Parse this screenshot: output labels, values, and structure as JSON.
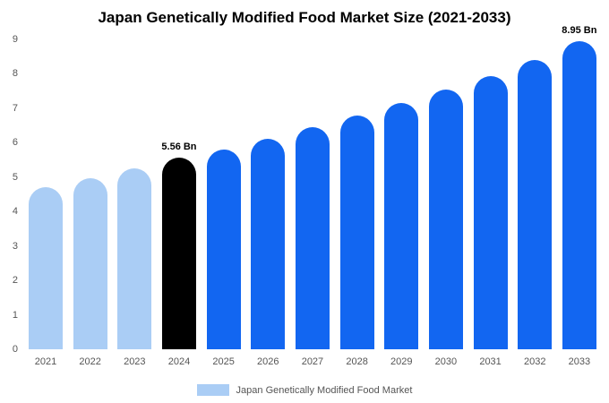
{
  "chart_data": {
    "type": "bar",
    "title": "Japan Genetically Modified Food Market Size (2021-2033)",
    "categories": [
      "2021",
      "2022",
      "2023",
      "2024",
      "2025",
      "2026",
      "2027",
      "2028",
      "2029",
      "2030",
      "2031",
      "2032",
      "2033"
    ],
    "values": [
      4.7,
      4.97,
      5.26,
      5.56,
      5.8,
      6.11,
      6.44,
      6.79,
      7.16,
      7.55,
      7.94,
      8.4,
      8.95
    ],
    "bar_colors": [
      "#aacdf5",
      "#aacdf5",
      "#aacdf5",
      "#000000",
      "#1266f1",
      "#1266f1",
      "#1266f1",
      "#1266f1",
      "#1266f1",
      "#1266f1",
      "#1266f1",
      "#1266f1",
      "#1266f1"
    ],
    "annotations": [
      {
        "index": 3,
        "label": "5.56 Bn"
      },
      {
        "index": 12,
        "label": "8.95 Bn"
      }
    ],
    "xlabel": "",
    "ylabel": "",
    "ylim": [
      0,
      9
    ],
    "yticks": [
      0,
      1,
      2,
      3,
      4,
      5,
      6,
      7,
      8,
      9
    ],
    "grid": false,
    "legend": {
      "position": "bottom",
      "label": "Japan Genetically Modified Food Market",
      "swatch_color": "#aacdf5"
    }
  }
}
